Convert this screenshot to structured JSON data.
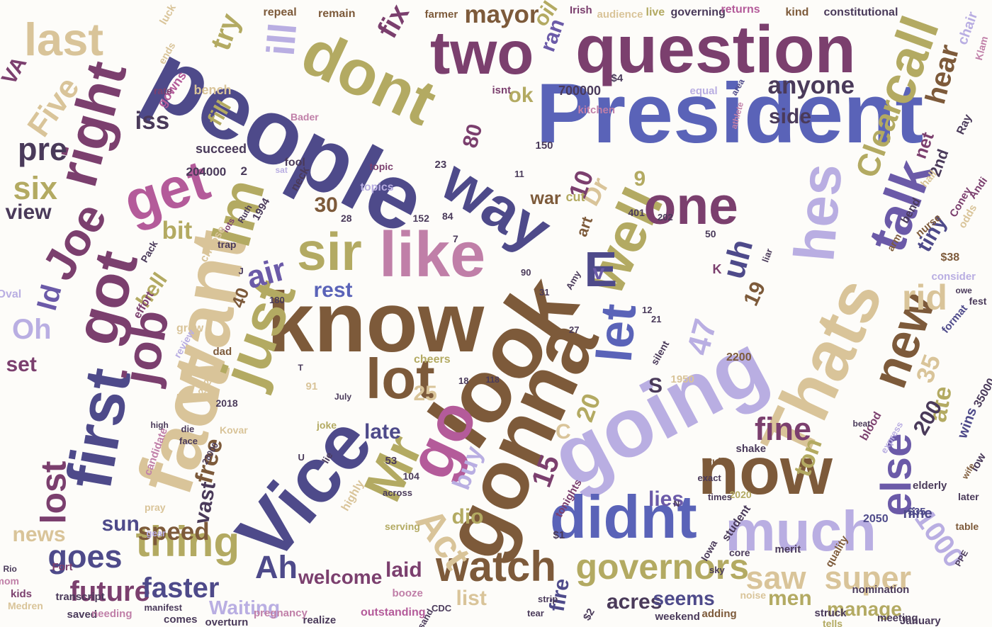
{
  "palette": {
    "tan": "#d9c499",
    "olive": "#b3aa62",
    "brown": "#7d5a3a",
    "navy": "#4e4a8a",
    "blue": "#5a63b8",
    "lavender": "#b9aee2",
    "plum": "#7b3f6e",
    "magenta": "#b45b9a",
    "mauve": "#c07fa8",
    "purple": "#6b5aa8",
    "dark": "#4a3a5a"
  },
  "words": [
    {
      "text": "President",
      "color": "blue"
    },
    {
      "text": "people",
      "color": "navy"
    },
    {
      "text": "question",
      "color": "plum"
    },
    {
      "text": "know",
      "color": "brown"
    },
    {
      "text": "look",
      "color": "brown"
    },
    {
      "text": "gonna",
      "color": "brown"
    },
    {
      "text": "going",
      "color": "lavender"
    },
    {
      "text": "Vice",
      "color": "navy"
    },
    {
      "text": "fact",
      "color": "tan"
    },
    {
      "text": "want",
      "color": "tan"
    },
    {
      "text": "first",
      "color": "navy"
    },
    {
      "text": "like",
      "color": "mauve"
    },
    {
      "text": "two",
      "color": "plum"
    },
    {
      "text": "way",
      "color": "navy"
    },
    {
      "text": "dont",
      "color": "olive"
    },
    {
      "text": "Thats",
      "color": "tan"
    },
    {
      "text": "now",
      "color": "brown"
    },
    {
      "text": "much",
      "color": "lavender"
    },
    {
      "text": "didnt",
      "color": "blue"
    },
    {
      "text": "well",
      "color": "olive"
    },
    {
      "text": "Im",
      "color": "olive"
    },
    {
      "text": "just",
      "color": "olive"
    },
    {
      "text": "got",
      "color": "plum"
    },
    {
      "text": "get",
      "color": "magenta"
    },
    {
      "text": "right",
      "color": "plum"
    },
    {
      "text": "one",
      "color": "plum"
    },
    {
      "text": "hes",
      "color": "lavender"
    },
    {
      "text": "talk",
      "color": "purple"
    },
    {
      "text": "call",
      "color": "olive"
    },
    {
      "text": "Mr",
      "color": "olive"
    },
    {
      "text": "go",
      "color": "magenta"
    },
    {
      "text": "lot",
      "color": "brown"
    },
    {
      "text": "sir",
      "color": "olive"
    },
    {
      "text": "let",
      "color": "blue"
    },
    {
      "text": "job",
      "color": "plum"
    },
    {
      "text": "Joe",
      "color": "plum"
    },
    {
      "text": "new",
      "color": "brown"
    },
    {
      "text": "last",
      "color": "tan"
    },
    {
      "text": "thing",
      "color": "olive"
    },
    {
      "text": "watch",
      "color": "brown"
    },
    {
      "text": "governors",
      "color": "olive"
    },
    {
      "text": "else",
      "color": "purple"
    },
    {
      "text": "Act",
      "color": "tan"
    },
    {
      "text": "lost",
      "color": "plum"
    },
    {
      "text": "future",
      "color": "plum"
    },
    {
      "text": "faster",
      "color": "navy"
    },
    {
      "text": "goes",
      "color": "navy"
    },
    {
      "text": "super",
      "color": "tan"
    },
    {
      "text": "saw",
      "color": "tan"
    },
    {
      "text": "fine",
      "color": "plum"
    },
    {
      "text": "Ah",
      "color": "navy"
    },
    {
      "text": "rid",
      "color": "tan"
    },
    {
      "text": "uh",
      "color": "navy"
    },
    {
      "text": "air",
      "color": "purple"
    },
    {
      "text": "Clear",
      "color": "olive"
    },
    {
      "text": "Five",
      "color": "tan"
    },
    {
      "text": "six",
      "color": "olive"
    },
    {
      "text": "pre",
      "color": "dark"
    },
    {
      "text": "hear",
      "color": "brown"
    },
    {
      "text": "anyone",
      "color": "dark"
    },
    {
      "text": "side",
      "color": "dark"
    },
    {
      "text": "ran",
      "color": "purple"
    },
    {
      "text": "fix",
      "color": "plum"
    },
    {
      "text": "try",
      "color": "olive"
    },
    {
      "text": "oil",
      "color": "olive"
    },
    {
      "text": "mayor",
      "color": "brown"
    },
    {
      "text": "speed",
      "color": "brown"
    },
    {
      "text": "fill",
      "color": "olive"
    },
    {
      "text": "ok",
      "color": "olive"
    },
    {
      "text": "iss",
      "color": "dark"
    },
    {
      "text": "ill",
      "color": "lavender"
    },
    {
      "text": "Oh",
      "color": "lavender"
    },
    {
      "text": "set",
      "color": "plum"
    },
    {
      "text": "view",
      "color": "dark"
    },
    {
      "text": "bit",
      "color": "olive"
    },
    {
      "text": "hell",
      "color": "olive"
    },
    {
      "text": "Id",
      "color": "purple"
    },
    {
      "text": "Dr",
      "color": "tan"
    },
    {
      "text": "rest",
      "color": "blue"
    },
    {
      "text": "late",
      "color": "navy"
    },
    {
      "text": "free",
      "color": "brown"
    },
    {
      "text": "sun",
      "color": "navy"
    },
    {
      "text": "vast",
      "color": "dark"
    },
    {
      "text": "news",
      "color": "tan"
    },
    {
      "text": "Waiting",
      "color": "lavender"
    },
    {
      "text": "welcome",
      "color": "plum"
    },
    {
      "text": "laid",
      "color": "plum"
    },
    {
      "text": "list",
      "color": "tan"
    },
    {
      "text": "dio",
      "color": "olive"
    },
    {
      "text": "buy",
      "color": "lavender"
    },
    {
      "text": "fire",
      "color": "navy"
    },
    {
      "text": "acres",
      "color": "dark"
    },
    {
      "text": "seems",
      "color": "navy"
    },
    {
      "text": "men",
      "color": "olive"
    },
    {
      "text": "manage",
      "color": "olive"
    },
    {
      "text": "ton",
      "color": "olive"
    },
    {
      "text": "lies",
      "color": "purple"
    },
    {
      "text": "ate",
      "color": "olive"
    },
    {
      "text": "E",
      "color": "navy"
    },
    {
      "text": "v",
      "color": "purple"
    },
    {
      "text": "S",
      "color": "dark"
    },
    {
      "text": "C",
      "color": "tan"
    },
    {
      "text": "1000",
      "color": "lavender"
    },
    {
      "text": "200",
      "color": "dark"
    },
    {
      "text": "47",
      "color": "lavender"
    },
    {
      "text": "35",
      "color": "tan"
    },
    {
      "text": "80",
      "color": "plum"
    },
    {
      "text": "10",
      "color": "plum"
    },
    {
      "text": "20",
      "color": "olive"
    },
    {
      "text": "25",
      "color": "tan"
    },
    {
      "text": "15",
      "color": "plum"
    },
    {
      "text": "19",
      "color": "brown"
    },
    {
      "text": "30",
      "color": "brown"
    },
    {
      "text": "40",
      "color": "brown"
    },
    {
      "text": "9",
      "color": "olive"
    },
    {
      "text": "nine",
      "color": "navy"
    },
    {
      "text": "tiny",
      "color": "navy"
    },
    {
      "text": "net",
      "color": "plum"
    },
    {
      "text": "2nd",
      "color": "dark"
    },
    {
      "text": "VA",
      "color": "plum"
    },
    {
      "text": "art",
      "color": "brown"
    },
    {
      "text": "war",
      "color": "brown"
    },
    {
      "text": "cut",
      "color": "olive"
    },
    {
      "text": "remain",
      "color": "brown"
    },
    {
      "text": "farmer",
      "color": "brown"
    },
    {
      "text": "Irish",
      "color": "plum"
    },
    {
      "text": "audience",
      "color": "tan"
    },
    {
      "text": "live",
      "color": "olive"
    },
    {
      "text": "governing",
      "color": "dark"
    },
    {
      "text": "returns",
      "color": "magenta"
    },
    {
      "text": "kind",
      "color": "brown"
    },
    {
      "text": "constitutional",
      "color": "dark"
    },
    {
      "text": "repeal",
      "color": "brown"
    },
    {
      "text": "luck",
      "color": "tan"
    },
    {
      "text": "ends",
      "color": "tan"
    },
    {
      "text": "gowns",
      "color": "magenta"
    },
    {
      "text": "bench",
      "color": "tan"
    },
    {
      "text": "rate",
      "color": "plum"
    },
    {
      "text": "700000",
      "color": "dark"
    },
    {
      "text": "equal",
      "color": "lavender"
    },
    {
      "text": "kitchen",
      "color": "mauve"
    },
    {
      "text": "isnt",
      "color": "plum"
    },
    {
      "text": "area",
      "color": "navy"
    },
    {
      "text": "athlete",
      "color": "mauve"
    },
    {
      "text": "Ray",
      "color": "dark"
    },
    {
      "text": "chair",
      "color": "lavender"
    },
    {
      "text": "Klam",
      "color": "mauve"
    },
    {
      "text": "topic",
      "color": "plum"
    },
    {
      "text": "succeed",
      "color": "dark"
    },
    {
      "text": "Bader",
      "color": "mauve"
    },
    {
      "text": "204000",
      "color": "dark"
    },
    {
      "text": "fool",
      "color": "dark"
    },
    {
      "text": "sat",
      "color": "lavender"
    },
    {
      "text": "neck",
      "color": "dark"
    },
    {
      "text": "1994",
      "color": "dark"
    },
    {
      "text": "Ruth",
      "color": "dark"
    },
    {
      "text": "lots",
      "color": "plum"
    },
    {
      "text": "trap",
      "color": "dark"
    },
    {
      "text": "choose",
      "color": "tan"
    },
    {
      "text": "Pack",
      "color": "dark"
    },
    {
      "text": "topics",
      "color": "lavender"
    },
    {
      "text": "hall",
      "color": "tan"
    },
    {
      "text": "nurse",
      "color": "brown"
    },
    {
      "text": "bend",
      "color": "dark"
    },
    {
      "text": "arm",
      "color": "brown"
    },
    {
      "text": "Andi",
      "color": "plum"
    },
    {
      "text": "odds",
      "color": "tan"
    },
    {
      "text": "Coney",
      "color": "plum"
    },
    {
      "text": "K",
      "color": "plum"
    },
    {
      "text": "liar",
      "color": "dark"
    },
    {
      "text": "$38",
      "color": "brown"
    },
    {
      "text": "consider",
      "color": "lavender"
    },
    {
      "text": "owe",
      "color": "dark"
    },
    {
      "text": "format",
      "color": "navy"
    },
    {
      "text": "fest",
      "color": "dark"
    },
    {
      "text": "Oval",
      "color": "lavender"
    },
    {
      "text": "effort",
      "color": "plum"
    },
    {
      "text": "grow",
      "color": "tan"
    },
    {
      "text": "review",
      "color": "lavender"
    },
    {
      "text": "Amy",
      "color": "dark"
    },
    {
      "text": "dad",
      "color": "brown"
    },
    {
      "text": "silent",
      "color": "dark"
    },
    {
      "text": "1950",
      "color": "tan"
    },
    {
      "text": "2200",
      "color": "brown"
    },
    {
      "text": "35000",
      "color": "dark"
    },
    {
      "text": "wins",
      "color": "navy"
    },
    {
      "text": "blood",
      "color": "plum"
    },
    {
      "text": "beat",
      "color": "dark"
    },
    {
      "text": "express",
      "color": "lavender"
    },
    {
      "text": "low",
      "color": "dark"
    },
    {
      "text": "wife",
      "color": "brown"
    },
    {
      "text": "later",
      "color": "dark"
    },
    {
      "text": "elderly",
      "color": "dark"
    },
    {
      "text": "$35",
      "color": "navy"
    },
    {
      "text": "table",
      "color": "brown"
    },
    {
      "text": "PPE",
      "color": "dark"
    },
    {
      "text": "shake",
      "color": "dark"
    },
    {
      "text": "2050",
      "color": "navy"
    },
    {
      "text": "cheers",
      "color": "olive"
    },
    {
      "text": "July",
      "color": "dark"
    },
    {
      "text": "2021",
      "color": "tan"
    },
    {
      "text": "2018",
      "color": "dark"
    },
    {
      "text": "die",
      "color": "dark"
    },
    {
      "text": "face",
      "color": "dark"
    },
    {
      "text": "candidate",
      "color": "mauve"
    },
    {
      "text": "high",
      "color": "dark"
    },
    {
      "text": "Kovar",
      "color": "tan"
    },
    {
      "text": "28000",
      "color": "dark"
    },
    {
      "text": "joke",
      "color": "olive"
    },
    {
      "text": "2020",
      "color": "olive"
    },
    {
      "text": "rules",
      "color": "brown"
    },
    {
      "text": "exact",
      "color": "dark"
    },
    {
      "text": "times",
      "color": "dark"
    },
    {
      "text": "$1",
      "color": "dark"
    },
    {
      "text": "tonights",
      "color": "plum"
    },
    {
      "text": "serving",
      "color": "olive"
    },
    {
      "text": "across",
      "color": "dark"
    },
    {
      "text": "highly",
      "color": "tan"
    },
    {
      "text": "Rio",
      "color": "dark"
    },
    {
      "text": "Fort",
      "color": "plum"
    },
    {
      "text": "Medren",
      "color": "tan"
    },
    {
      "text": "pray",
      "color": "tan"
    },
    {
      "text": "gear",
      "color": "lavender"
    },
    {
      "text": "student",
      "color": "dark"
    },
    {
      "text": "Iowa",
      "color": "dark"
    },
    {
      "text": "core",
      "color": "dark"
    },
    {
      "text": "sky",
      "color": "dark"
    },
    {
      "text": "nomination",
      "color": "dark"
    },
    {
      "text": "meeting",
      "color": "dark"
    },
    {
      "text": "January",
      "color": "dark"
    },
    {
      "text": "mom",
      "color": "mauve"
    },
    {
      "text": "kids",
      "color": "plum"
    },
    {
      "text": "transcript",
      "color": "dark"
    },
    {
      "text": "saved",
      "color": "dark"
    },
    {
      "text": "needing",
      "color": "mauve"
    },
    {
      "text": "comes",
      "color": "dark"
    },
    {
      "text": "manifest",
      "color": "dark"
    },
    {
      "text": "overturn",
      "color": "dark"
    },
    {
      "text": "pregnancy",
      "color": "mauve"
    },
    {
      "text": "realize",
      "color": "dark"
    },
    {
      "text": "outstanding",
      "color": "magenta"
    },
    {
      "text": "booze",
      "color": "mauve"
    },
    {
      "text": "weekend",
      "color": "dark"
    },
    {
      "text": "adding",
      "color": "brown"
    },
    {
      "text": "noise",
      "color": "tan"
    },
    {
      "text": "tells",
      "color": "olive"
    },
    {
      "text": "struck",
      "color": "dark"
    },
    {
      "text": "quality",
      "color": "brown"
    },
    {
      "text": "merit",
      "color": "dark"
    },
    {
      "text": "tear",
      "color": "dark"
    },
    {
      "text": "strip",
      "color": "dark"
    },
    {
      "text": "$2",
      "color": "dark"
    },
    {
      "text": "sand",
      "color": "dark"
    },
    {
      "text": "CDC",
      "color": "dark"
    },
    {
      "text": "lie",
      "color": "dark"
    },
    {
      "text": "U",
      "color": "dark"
    },
    {
      "text": "53",
      "color": "dark"
    },
    {
      "text": "104",
      "color": "dark"
    },
    {
      "text": "91",
      "color": "tan"
    },
    {
      "text": "18",
      "color": "dark"
    },
    {
      "text": "118",
      "color": "dark"
    },
    {
      "text": "7",
      "color": "dark"
    },
    {
      "text": "84",
      "color": "dark"
    },
    {
      "text": "152",
      "color": "dark"
    },
    {
      "text": "28",
      "color": "dark"
    },
    {
      "text": "23",
      "color": "dark"
    },
    {
      "text": "11",
      "color": "dark"
    },
    {
      "text": "150",
      "color": "dark"
    },
    {
      "text": "401",
      "color": "dark"
    },
    {
      "text": "202",
      "color": "dark"
    },
    {
      "text": "2",
      "color": "dark"
    },
    {
      "text": "50",
      "color": "dark"
    },
    {
      "text": "21",
      "color": "dark"
    },
    {
      "text": "12",
      "color": "dark"
    },
    {
      "text": "31",
      "color": "dark"
    },
    {
      "text": "90",
      "color": "dark"
    },
    {
      "text": "27",
      "color": "dark"
    },
    {
      "text": "180",
      "color": "dark"
    },
    {
      "text": "N",
      "color": "dark"
    },
    {
      "text": "T",
      "color": "dark"
    },
    {
      "text": "J",
      "color": "dark"
    },
    {
      "text": "$4",
      "color": "dark"
    }
  ]
}
